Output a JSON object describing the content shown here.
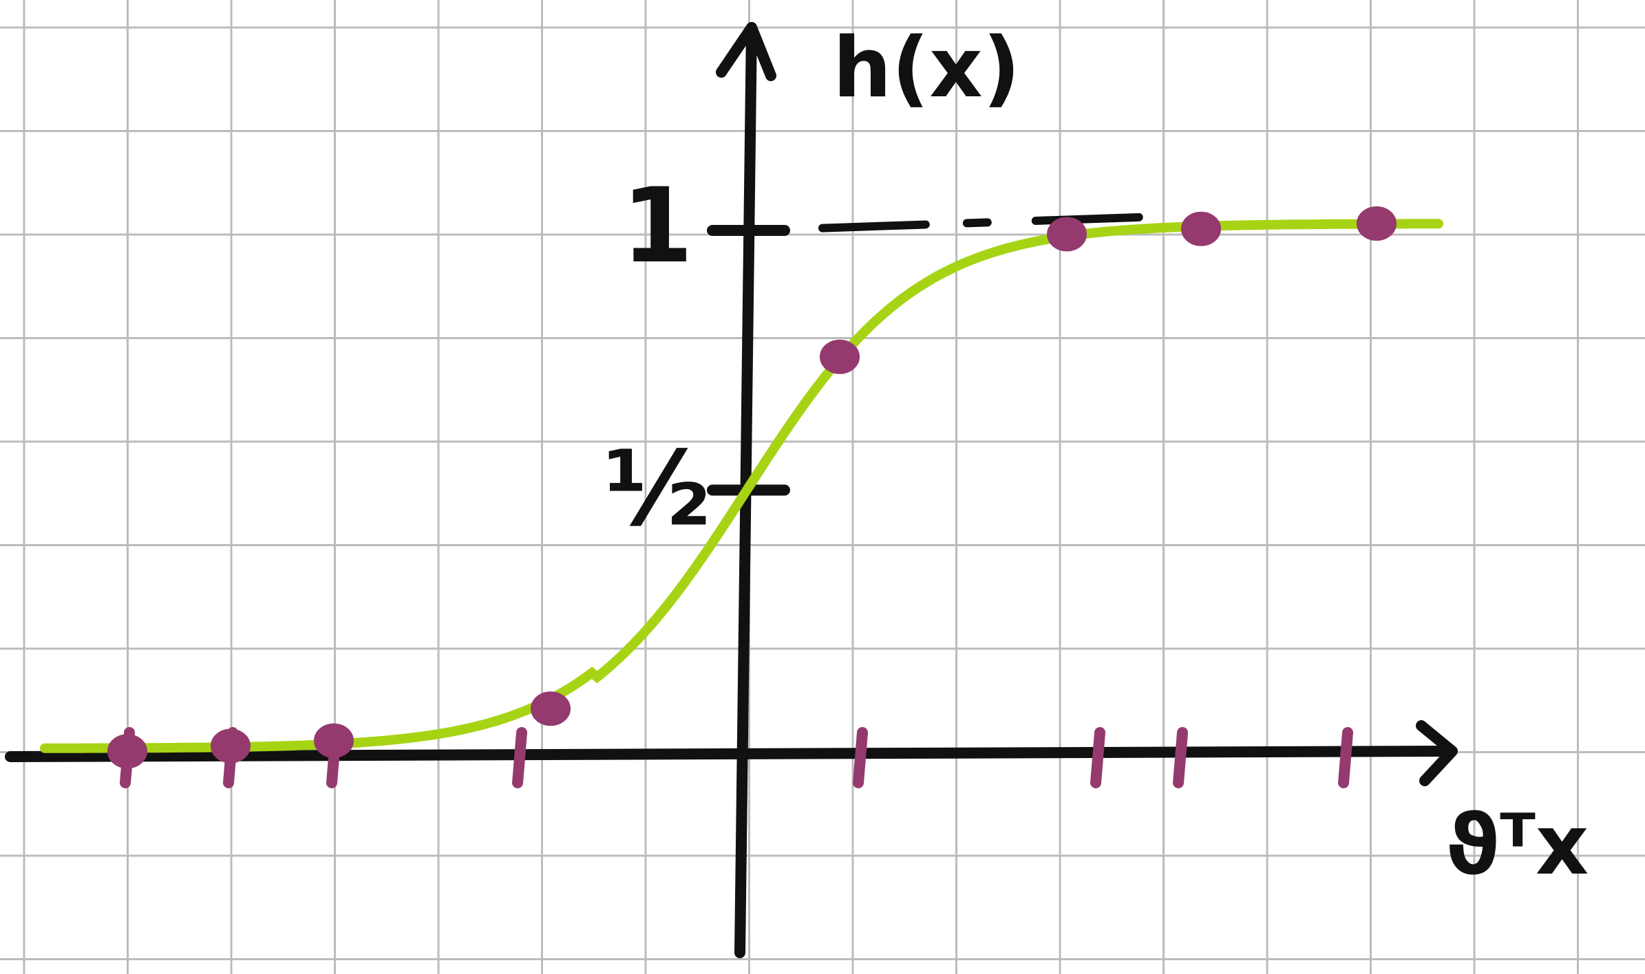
{
  "chart_data": {
    "type": "line",
    "title": "",
    "ylabel": "h(x)",
    "xlabel": "ϑᵀx",
    "ytick_labels": [
      {
        "value": 0.5,
        "text": "½"
      },
      {
        "value": 1,
        "text": "1"
      }
    ],
    "asymptote": {
      "value": 1,
      "style": "dashed"
    },
    "xlim": [
      -7,
      7
    ],
    "ylim": [
      -0.35,
      1.4
    ],
    "grid": true,
    "curve": {
      "kind": "sigmoid",
      "midpoint": 0,
      "steepness": 1.2
    },
    "x_ticks": [
      -6,
      -5,
      -4,
      -2.2,
      1.1,
      3.4,
      4.2,
      5.8
    ],
    "points": [
      {
        "x": -6,
        "y": 0.01
      },
      {
        "x": -5,
        "y": 0.02
      },
      {
        "x": -4,
        "y": 0.03
      },
      {
        "x": -1.9,
        "y": 0.09
      },
      {
        "x": 0.9,
        "y": 0.75
      },
      {
        "x": 3.1,
        "y": 0.98
      },
      {
        "x": 4.4,
        "y": 0.99
      },
      {
        "x": 6.1,
        "y": 1.0
      }
    ],
    "colors": {
      "curve": "#a6d414",
      "points": "#943a6e",
      "axes": "#111111",
      "grid": "#bcbcbc"
    }
  }
}
